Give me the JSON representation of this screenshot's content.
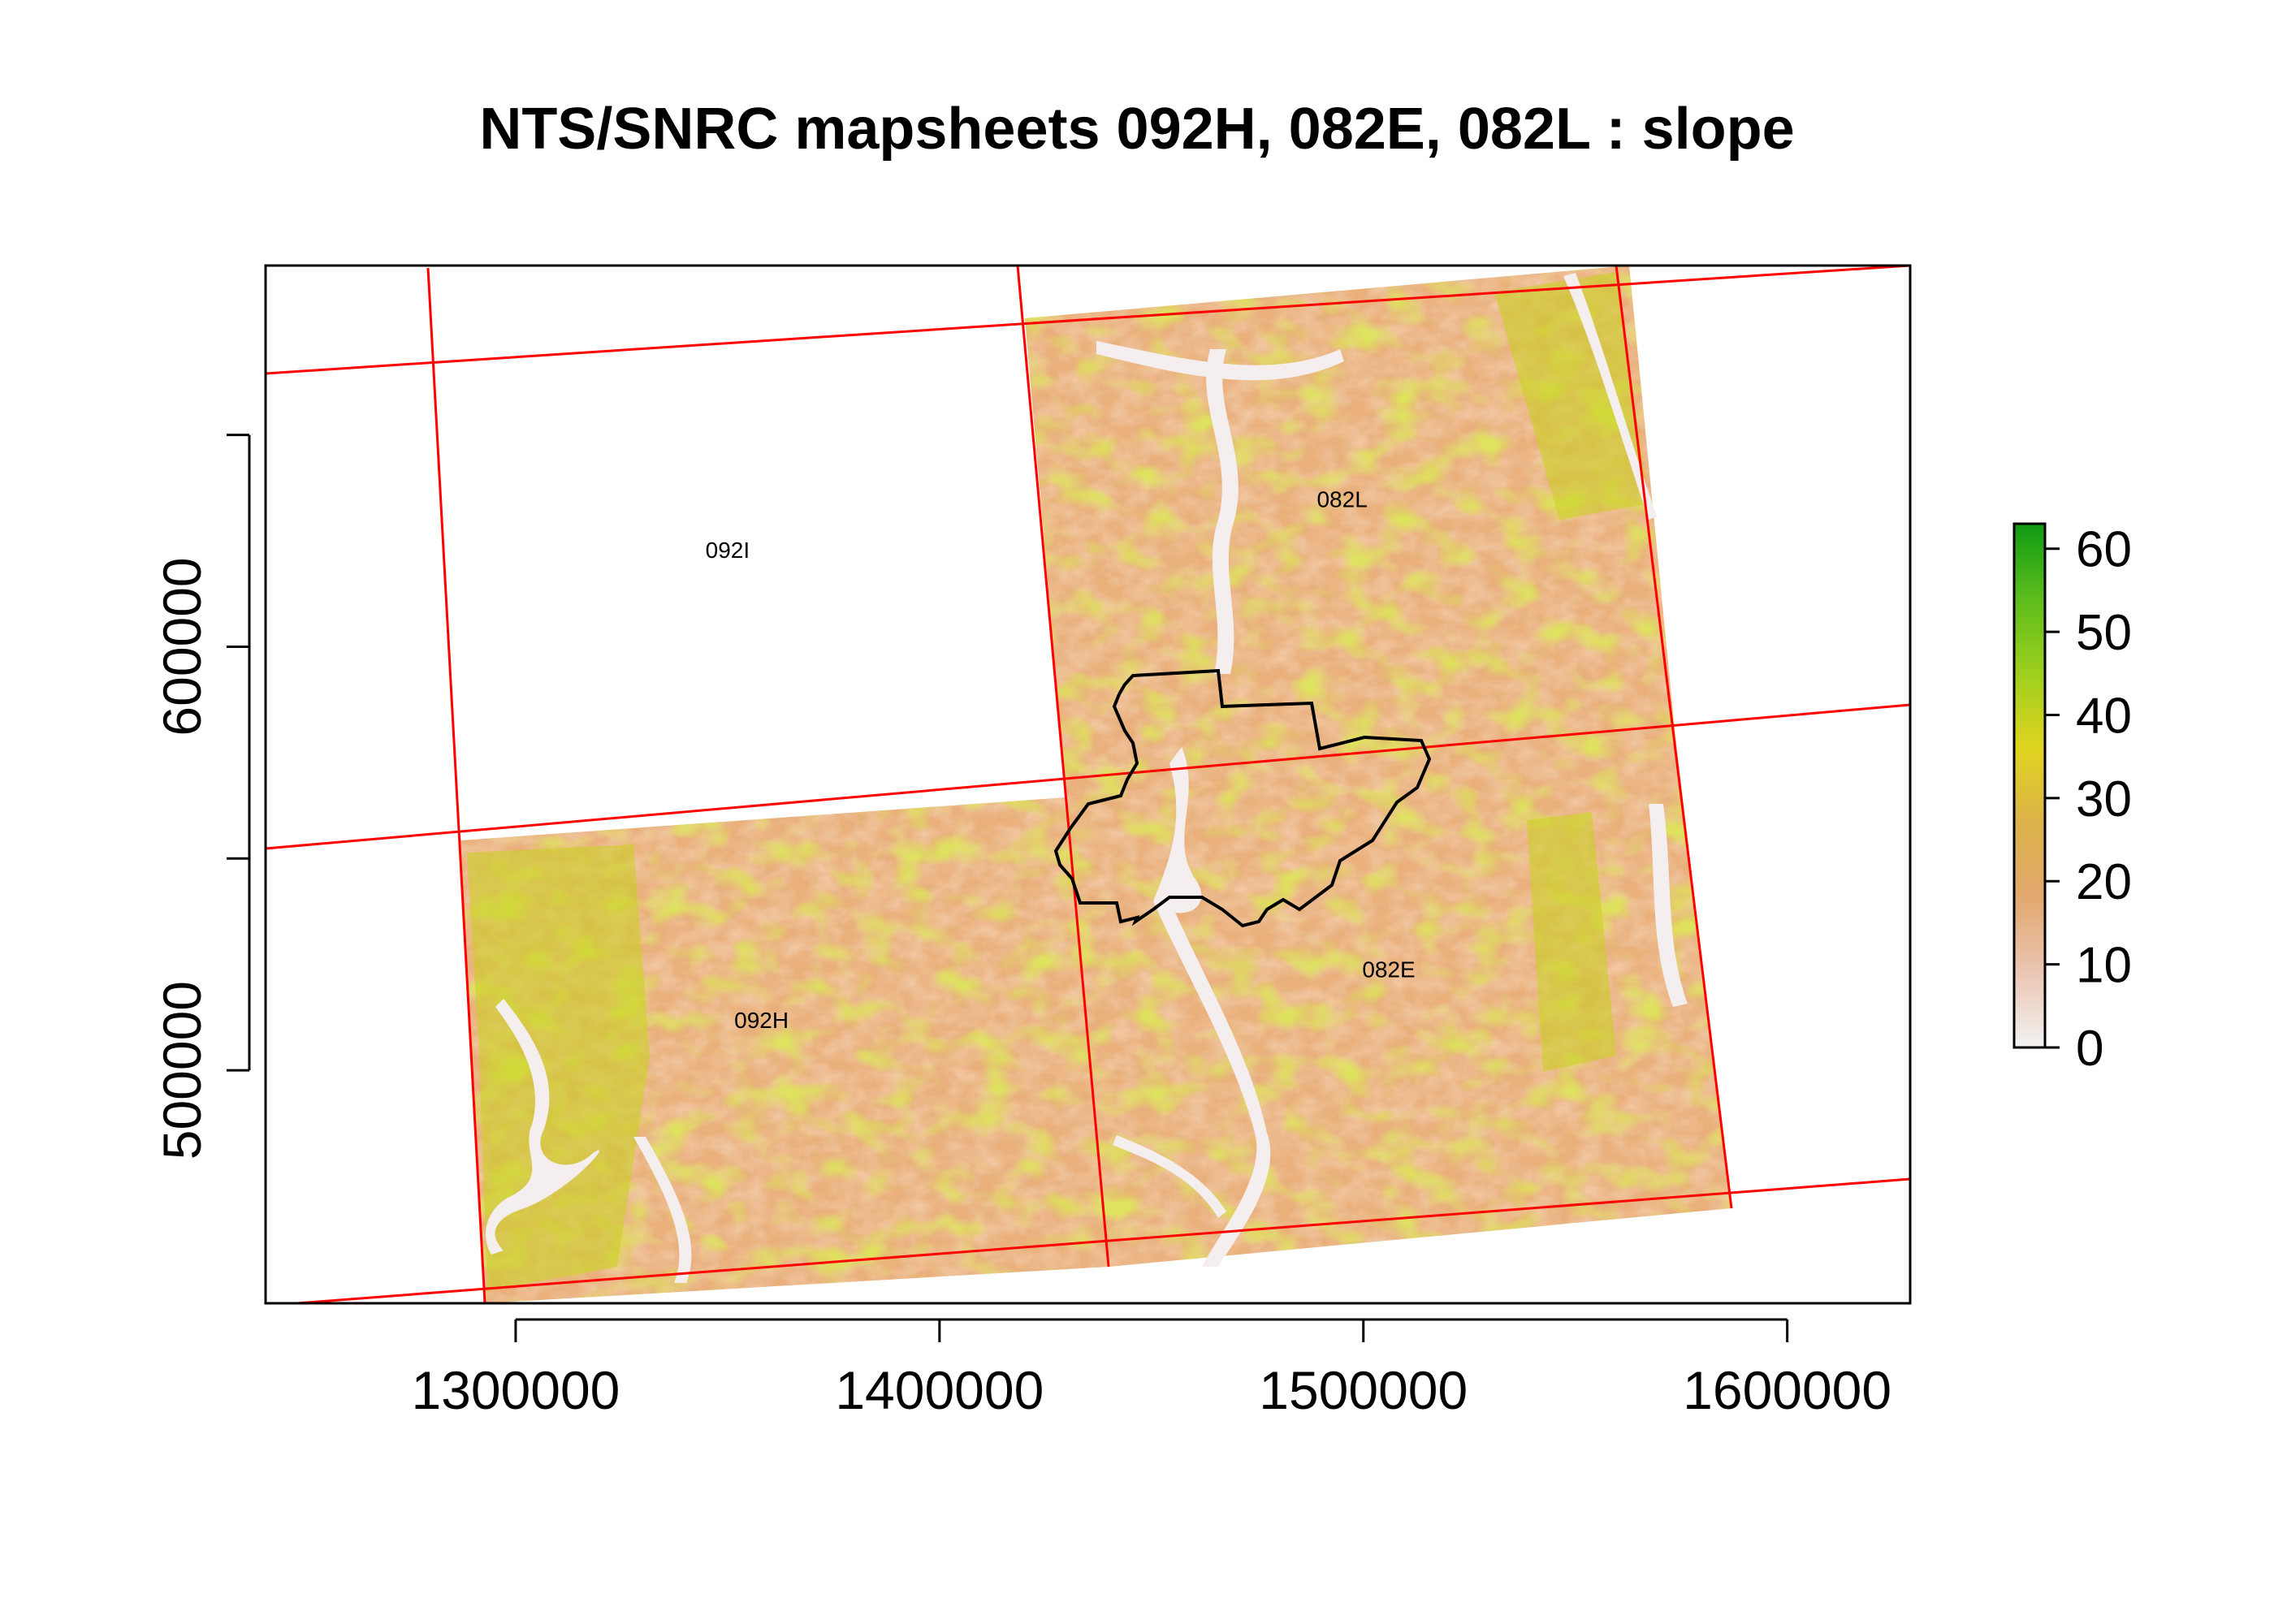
{
  "title": "NTS/SNRC mapsheets  092H, 082E, 082L : slope",
  "axes": {
    "x": {
      "ticks": [
        1300000,
        1400000,
        1500000,
        1600000
      ],
      "tick_labels": [
        "1300000",
        "1400000",
        "1500000",
        "1600000"
      ],
      "range": [
        1241000,
        1629000
      ]
    },
    "y": {
      "ticks": [
        500000,
        550000,
        600000,
        650000
      ],
      "labeled_ticks": [
        500000,
        600000
      ],
      "tick_labels": [
        "500000",
        "600000"
      ],
      "range": [
        445000,
        690000
      ]
    }
  },
  "mapsheets": [
    {
      "id": "092I",
      "label": "092I",
      "label_at": [
        1350000,
        621000
      ],
      "filled": false
    },
    {
      "id": "082L",
      "label": "082L",
      "label_at": [
        1495000,
        633000
      ],
      "filled": true
    },
    {
      "id": "092H",
      "label": "092H",
      "label_at": [
        1358000,
        510000
      ],
      "filled": true
    },
    {
      "id": "082E",
      "label": "082E",
      "label_at": [
        1506000,
        522000
      ],
      "filled": true
    }
  ],
  "legend": {
    "title": "",
    "min": 0,
    "max": 63,
    "ticks": [
      0,
      10,
      20,
      30,
      40,
      50,
      60
    ],
    "tick_labels": [
      "0",
      "10",
      "20",
      "30",
      "40",
      "50",
      "60"
    ],
    "colors": [
      "#f2f2f2",
      "#ebc6b3",
      "#e2a86f",
      "#dcb24a",
      "#e0d420",
      "#9ecf1e",
      "#5cbd1c",
      "#0f9a14"
    ],
    "placement": "right"
  },
  "colors": {
    "grid_lines": "#ff0000",
    "boundary": "#000000",
    "terrain_base": "#e9b07c",
    "valley": "#f4eeee",
    "steep": "#c8d42a"
  }
}
